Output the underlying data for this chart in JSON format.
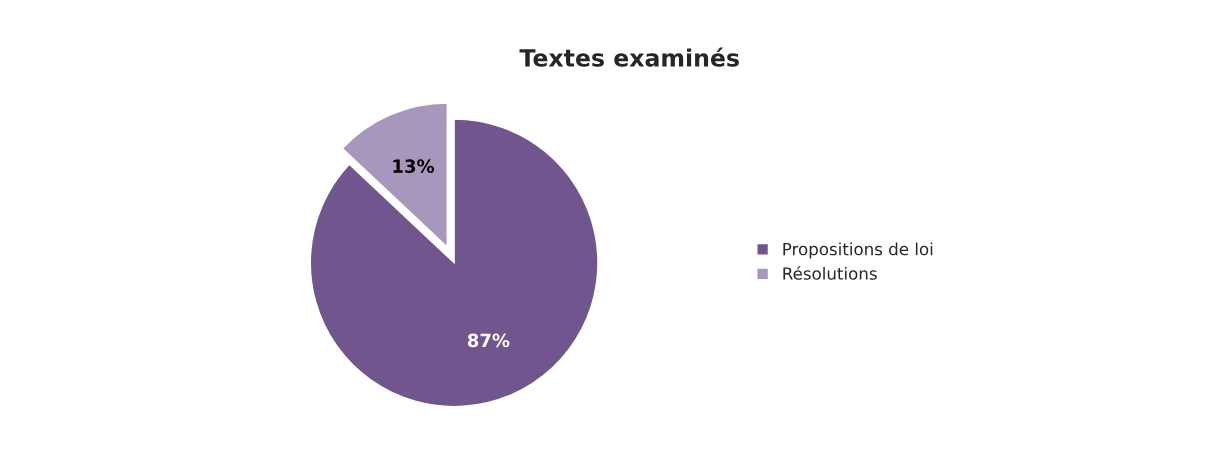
{
  "chart_data": {
    "type": "pie",
    "title": "Textes examinés",
    "categories": [
      "Propositions de loi",
      "Résolutions"
    ],
    "values": [
      87,
      13
    ],
    "colors": [
      "#71558f",
      "#a897bd"
    ],
    "value_labels": [
      "87%",
      "13%"
    ],
    "legend": "right"
  }
}
